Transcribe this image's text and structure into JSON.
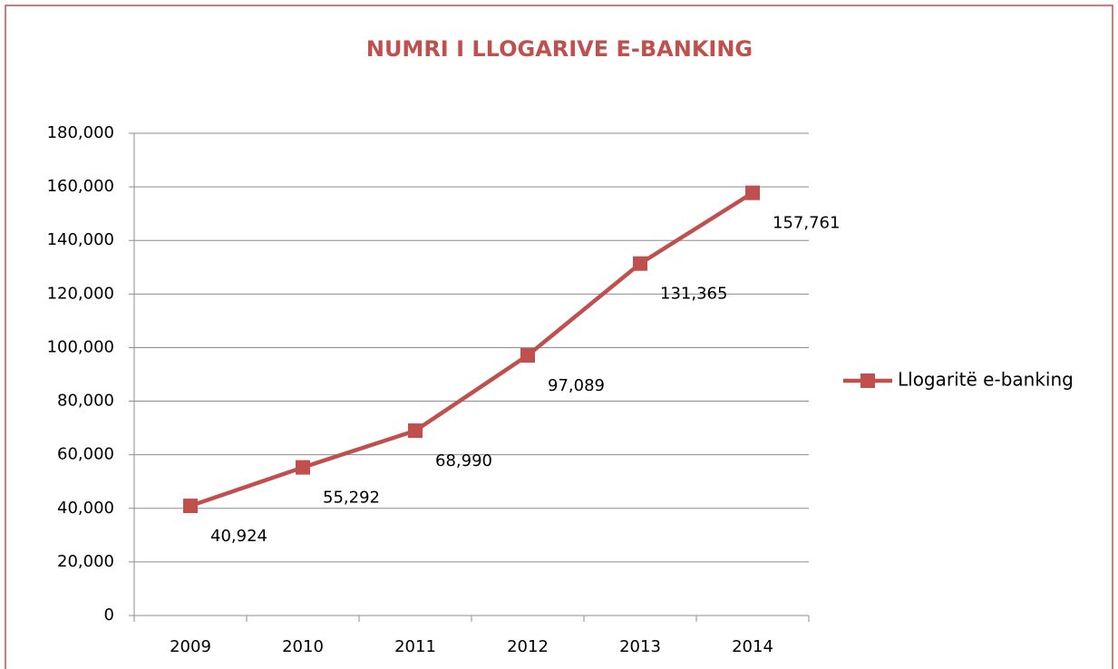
{
  "chart_data": {
    "type": "line",
    "title": "NUMRI I LLOGARIVE E-BANKING",
    "categories": [
      "2009",
      "2010",
      "2011",
      "2012",
      "2013",
      "2014"
    ],
    "series": [
      {
        "name": "Llogaritë e-banking",
        "color": "#c0504d",
        "values": [
          40924,
          55292,
          68990,
          97089,
          131365,
          157761
        ],
        "value_labels": [
          "40,924",
          "55,292",
          "68,990",
          "97,089",
          "131,365",
          "157,761"
        ]
      }
    ],
    "ylim": [
      0,
      180000
    ],
    "yticks": [
      0,
      {
        "value": 20000,
        "label": "20,000"
      },
      {
        "value": 40000,
        "label": "40,000"
      },
      {
        "value": 60000,
        "label": "60,000"
      },
      {
        "value": 80000,
        "label": "80,000"
      },
      {
        "value": 100000,
        "label": "100,000"
      },
      {
        "value": 120000,
        "label": "120,000"
      },
      {
        "value": 140000,
        "label": "140,000"
      },
      {
        "value": 160000,
        "label": "160,000"
      },
      {
        "value": 180000,
        "label": "180,000"
      }
    ],
    "grid": true,
    "legend": "right"
  }
}
